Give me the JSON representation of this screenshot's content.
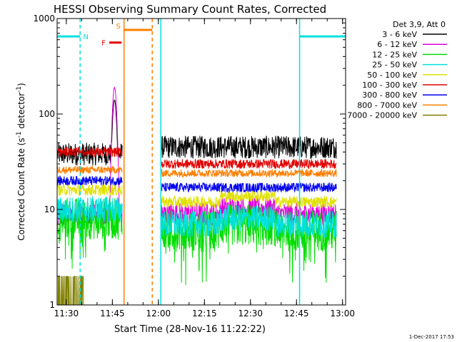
{
  "chart_data": {
    "type": "line",
    "title": "HESSI Observing Summary Count Rates, Corrected",
    "xlabel": "Start Time (28-Nov-16 11:22:22)",
    "ylabel": "Corrected Count Rate (s",
    "ylabel_sup1": "-1",
    "ylabel_mid": " detector",
    "ylabel_sup2": "-1",
    "ylabel_end": ")",
    "yscale": "log",
    "ylim": [
      1,
      1000
    ],
    "xlim_minutes": [
      87,
      181
    ],
    "x_ticks": [
      {
        "label": "11:30",
        "minute": 90
      },
      {
        "label": "11:45",
        "minute": 105
      },
      {
        "label": "12:00",
        "minute": 120
      },
      {
        "label": "12:15",
        "minute": 135
      },
      {
        "label": "12:30",
        "minute": 150
      },
      {
        "label": "12:45",
        "minute": 165
      },
      {
        "label": "13:00",
        "minute": 180
      }
    ],
    "y_ticks": [
      {
        "label": "1",
        "value": 1
      },
      {
        "label": "10",
        "value": 10
      },
      {
        "label": "100",
        "value": 100
      },
      {
        "label": "1000",
        "value": 1000
      }
    ],
    "legend_header": "Det 3,9, Att 0",
    "legend_position": "right",
    "series": [
      {
        "name": "3 - 6 keV",
        "color": "#000000",
        "pre": 38,
        "post": 45,
        "amp": 0.12,
        "peak": 140
      },
      {
        "name": "6 - 12 keV",
        "color": "#e000e0",
        "pre": 9,
        "post": 9,
        "amp": 0.12,
        "peak": 190
      },
      {
        "name": "12 - 25 keV",
        "color": "#00dd00",
        "pre": 8,
        "post": 6,
        "amp": 0.22
      },
      {
        "name": "25 - 50 keV",
        "color": "#00e0e0",
        "pre": 10,
        "post": 7,
        "amp": 0.14
      },
      {
        "name": "50 - 100 keV",
        "color": "#e0e000",
        "pre": 16,
        "post": 12,
        "amp": 0.06
      },
      {
        "name": "100 - 300 keV",
        "color": "#e00000",
        "pre": 40,
        "post": 30,
        "amp": 0.05
      },
      {
        "name": "300 - 800 keV",
        "color": "#0000ee",
        "pre": 20,
        "post": 17,
        "amp": 0.05
      },
      {
        "name": "800 - 7000 keV",
        "color": "#ff7f00",
        "pre": 26,
        "post": 24,
        "amp": 0.04
      },
      {
        "name": "7000 - 20000 keV",
        "color": "#808000",
        "pre": 1.5,
        "post": 1,
        "amp": 0.3
      }
    ],
    "flags": [
      {
        "label": "N",
        "color": "#00e0e0",
        "x_start": 87,
        "x_end": 94.5,
        "y": 650
      },
      {
        "label": "N",
        "color": "#00e0e0",
        "x_start": 166,
        "x_end": 181,
        "y": 650
      },
      {
        "label": "S",
        "color": "#ff7f00",
        "x_start": 108.8,
        "x_end": 118,
        "y": 760
      },
      {
        "label": "F",
        "color": "#e00000",
        "x_start": 104,
        "x_end": 108,
        "y": 560
      }
    ],
    "night_intervals": [
      [
        87,
        94.5
      ],
      [
        166,
        181
      ]
    ],
    "saa_interval": [
      108.8,
      118
    ],
    "gap": [
      108.2,
      120.8
    ]
  },
  "footer_date": "1-Dec-2017 17:53"
}
